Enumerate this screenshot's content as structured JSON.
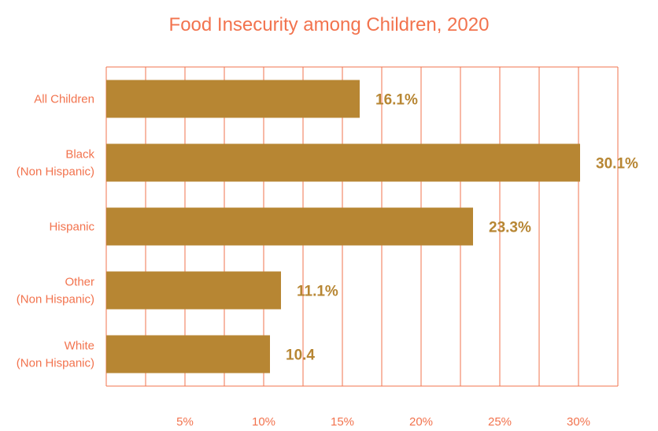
{
  "chart_data": {
    "type": "bar",
    "orientation": "horizontal",
    "title": "Food Insecurity among Children, 2020",
    "categories": [
      [
        "All Children"
      ],
      [
        "Black",
        "(Non Hispanic)"
      ],
      [
        "Hispanic"
      ],
      [
        "Other",
        "(Non Hispanic)"
      ],
      [
        "White",
        "(Non Hispanic)"
      ]
    ],
    "values": [
      16.1,
      30.1,
      23.3,
      11.1,
      10.4
    ],
    "data_labels": [
      "16.1%",
      "30.1%",
      "23.3%",
      "11.1%",
      "10.4"
    ],
    "xlim": [
      0,
      32.5
    ],
    "ticks": [
      5,
      10,
      15,
      20,
      25,
      30
    ],
    "tick_labels": [
      "5%",
      "10%",
      "15%",
      "20%",
      "25%",
      "30%"
    ],
    "grid": true,
    "colors": {
      "bar": "#b78633",
      "grid": "#f2734e",
      "text": "#f2734e",
      "data_label": "#b78633"
    }
  }
}
